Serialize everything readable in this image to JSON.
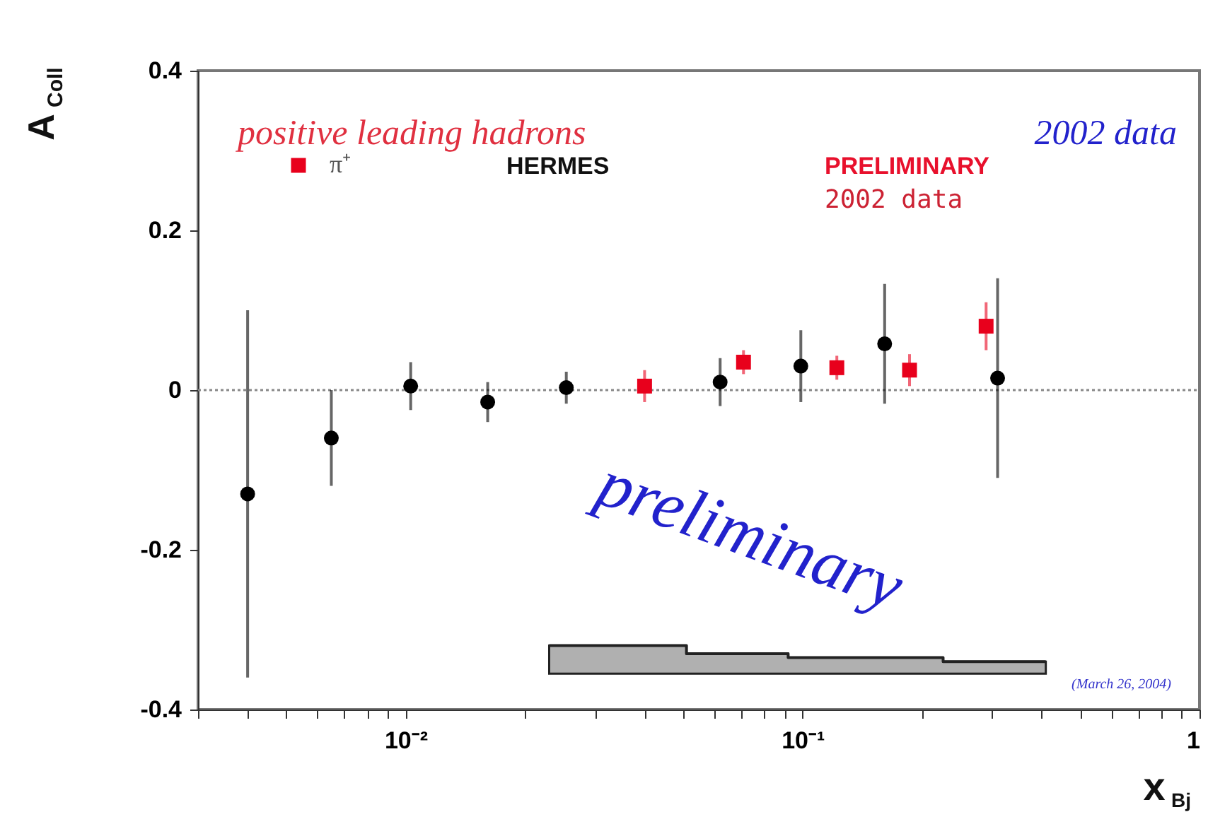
{
  "chart_data": {
    "type": "scatter",
    "xlabel": "x$_{Bj}$",
    "ylabel": "A$_{Coll}$",
    "annotations": [
      "positive leading hadrons",
      "2002 data",
      "HERMES",
      "PRELIMINARY",
      "2002 data",
      "preliminary",
      "(March 26, 2004)"
    ],
    "series": [
      {
        "color": "#000000",
        "marker": "circle",
        "x": [
          0.004,
          0.0065,
          0.0103,
          0.0161,
          0.0254,
          0.062,
          0.099,
          0.161,
          0.31
        ],
        "values": [
          -0.13,
          -0.06,
          0.005,
          -0.015,
          0.003,
          0.01,
          0.03,
          0.058,
          0.015
        ],
        "errors": [
          0.23,
          0.06,
          0.03,
          0.025,
          0.02,
          0.03,
          0.045,
          0.075,
          0.125
        ]
      },
      {
        "name": "π⁺",
        "color": "#e8001c",
        "marker": "square",
        "x": [
          0.04,
          0.071,
          0.122,
          0.186,
          0.29
        ],
        "values": [
          0.005,
          0.035,
          0.028,
          0.025,
          0.08
        ],
        "errors": [
          0.02,
          0.015,
          0.015,
          0.02,
          0.03
        ]
      },
      {
        "type": "line",
        "color": "#222222",
        "marker": "none",
        "x": [
          0.023,
          0.051,
          0.051,
          0.092,
          0.092,
          0.152,
          0.152,
          0.226,
          0.226,
          0.41
        ],
        "values": [
          -0.32,
          -0.32,
          -0.33,
          -0.33,
          -0.335,
          -0.335,
          -0.335,
          -0.335,
          -0.34,
          -0.34
        ],
        "lower": [
          -0.355,
          -0.355,
          -0.355,
          -0.355,
          -0.355,
          -0.355,
          -0.355,
          -0.355,
          -0.355,
          -0.355
        ],
        "upper": [
          -0.32,
          -0.32,
          -0.33,
          -0.33,
          -0.335,
          -0.335,
          -0.335,
          -0.335,
          -0.34,
          -0.34
        ]
      }
    ],
    "log": "x",
    "xlim": [
      0.003,
      1
    ],
    "xticks": [
      {
        "value": 0.003,
        "label": null
      },
      {
        "value": 0.004,
        "label": null
      },
      {
        "value": 0.005,
        "label": null
      },
      {
        "value": 0.006,
        "label": null
      },
      {
        "value": 0.007,
        "label": null
      },
      {
        "value": 0.008,
        "label": null
      },
      {
        "value": 0.009,
        "label": null
      },
      {
        "value": 0.01,
        "label": "10⁻²"
      },
      {
        "value": 0.02,
        "label": null
      },
      {
        "value": 0.03,
        "label": null
      },
      {
        "value": 0.04,
        "label": null
      },
      {
        "value": 0.05,
        "label": null
      },
      {
        "value": 0.06,
        "label": null
      },
      {
        "value": 0.07,
        "label": null
      },
      {
        "value": 0.08,
        "label": null
      },
      {
        "value": 0.09,
        "label": null
      },
      {
        "value": 0.1,
        "label": "10⁻¹"
      },
      {
        "value": 0.2,
        "label": null
      },
      {
        "value": 0.3,
        "label": null
      },
      {
        "value": 0.4,
        "label": null
      },
      {
        "value": 0.5,
        "label": null
      },
      {
        "value": 0.6,
        "label": null
      },
      {
        "value": 0.7,
        "label": null
      },
      {
        "value": 0.8,
        "label": null
      },
      {
        "value": 0.9,
        "label": null
      },
      1
    ],
    "ylim": [
      -0.4,
      0.4
    ],
    "yticks": [
      -0.4,
      -0.2,
      0,
      0.2,
      0.4
    ],
    "ref_lines": [
      {
        "axis": "y",
        "value": 0,
        "color": "#888888",
        "line_style": "dotted"
      }
    ],
    "grid": false,
    "legend": "top left"
  }
}
